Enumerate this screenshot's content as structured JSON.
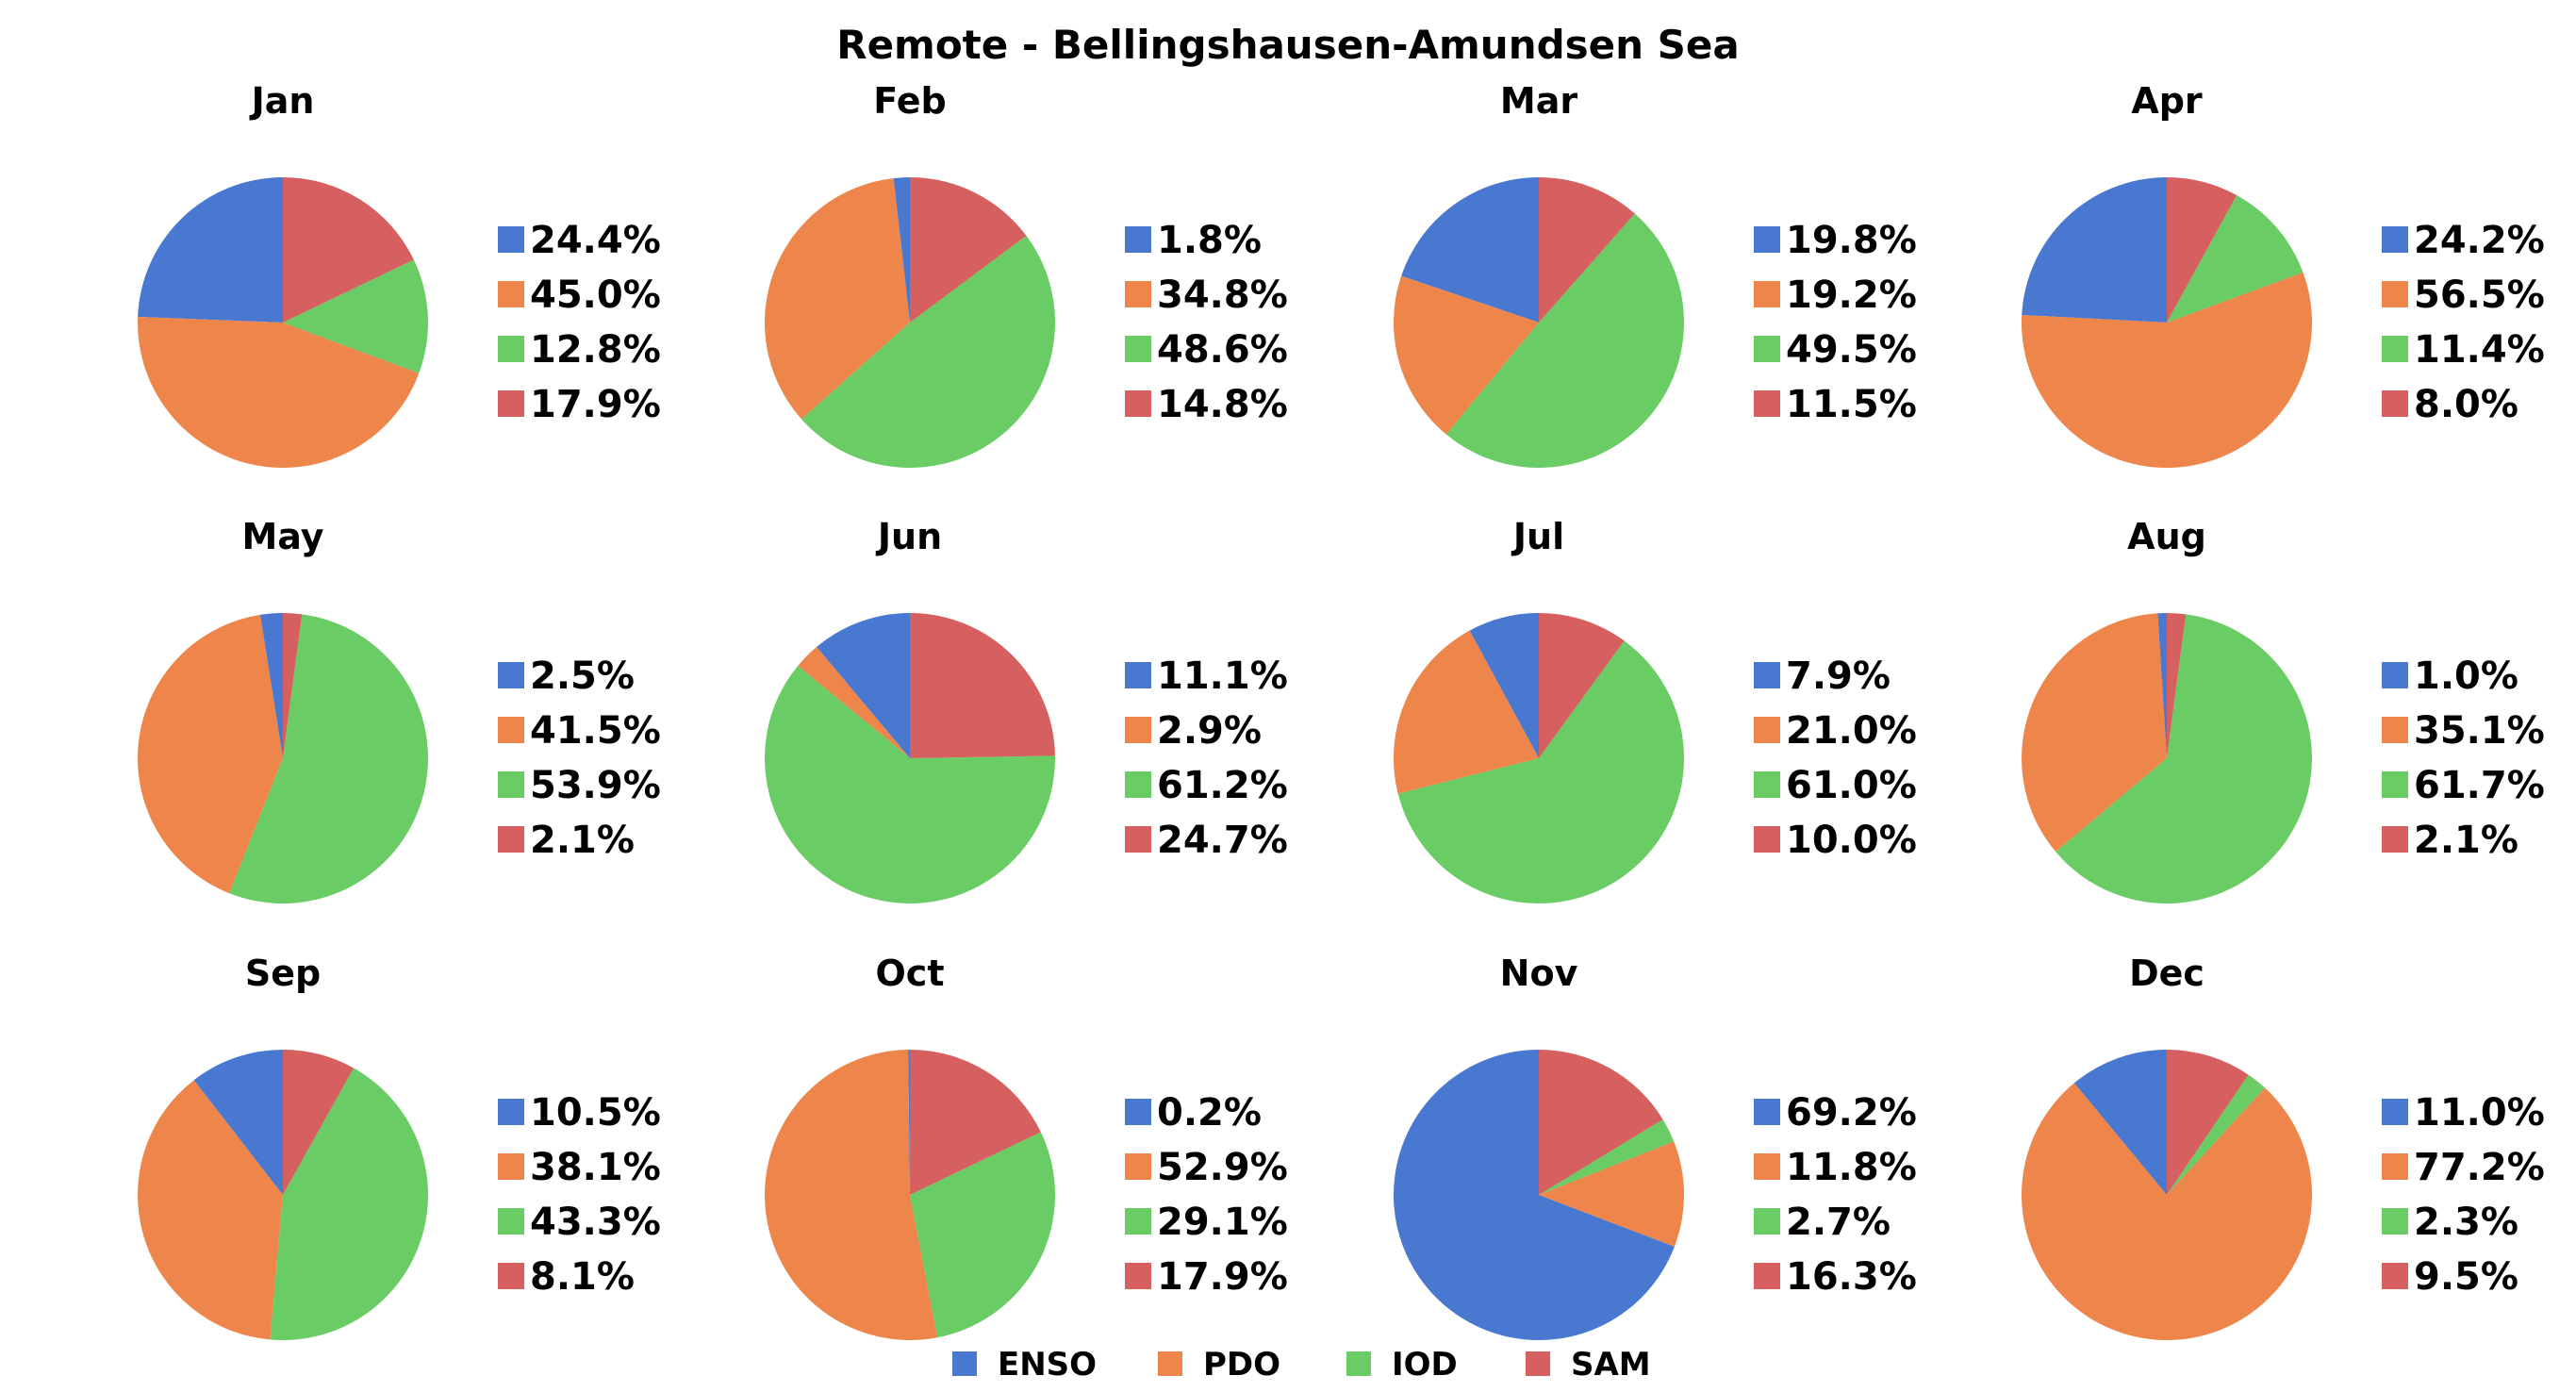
{
  "chart_data": {
    "type": "pie",
    "title": "Remote - Bellingshausen-Amundsen Sea",
    "categories": [
      "ENSO",
      "PDO",
      "IOD",
      "SAM"
    ],
    "colors": [
      "#4878d0",
      "#ee854a",
      "#6acc64",
      "#d65f5f"
    ],
    "legend": {
      "placement": "bottom-center",
      "entries": [
        "ENSO",
        "PDO",
        "IOD",
        "SAM"
      ]
    },
    "months": [
      {
        "name": "Jan",
        "values": [
          24.4,
          45.0,
          12.8,
          17.9
        ],
        "labels": [
          "24.4%",
          "45.0%",
          "12.8%",
          "17.9%"
        ]
      },
      {
        "name": "Feb",
        "values": [
          1.8,
          34.8,
          48.6,
          14.8
        ],
        "labels": [
          "1.8%",
          "34.8%",
          "48.6%",
          "14.8%"
        ]
      },
      {
        "name": "Mar",
        "values": [
          19.8,
          19.2,
          49.5,
          11.5
        ],
        "labels": [
          "19.8%",
          "19.2%",
          "49.5%",
          "11.5%"
        ]
      },
      {
        "name": "Apr",
        "values": [
          24.2,
          56.5,
          11.4,
          8.0
        ],
        "labels": [
          "24.2%",
          "56.5%",
          "11.4%",
          "8.0%"
        ]
      },
      {
        "name": "May",
        "values": [
          2.5,
          41.5,
          53.9,
          2.1
        ],
        "labels": [
          "2.5%",
          "41.5%",
          "53.9%",
          "2.1%"
        ]
      },
      {
        "name": "Jun",
        "values": [
          11.1,
          2.9,
          61.2,
          24.7
        ],
        "labels": [
          "11.1%",
          "2.9%",
          "61.2%",
          "24.7%"
        ]
      },
      {
        "name": "Jul",
        "values": [
          7.9,
          21.0,
          61.0,
          10.0
        ],
        "labels": [
          "7.9%",
          "21.0%",
          "61.0%",
          "10.0%"
        ]
      },
      {
        "name": "Aug",
        "values": [
          1.0,
          35.1,
          61.7,
          2.1
        ],
        "labels": [
          "1.0%",
          "35.1%",
          "61.7%",
          "2.1%"
        ]
      },
      {
        "name": "Sep",
        "values": [
          10.5,
          38.1,
          43.3,
          8.1
        ],
        "labels": [
          "10.5%",
          "38.1%",
          "43.3%",
          "8.1%"
        ]
      },
      {
        "name": "Oct",
        "values": [
          0.2,
          52.9,
          29.1,
          17.9
        ],
        "labels": [
          "0.2%",
          "52.9%",
          "29.1%",
          "17.9%"
        ]
      },
      {
        "name": "Nov",
        "values": [
          69.2,
          11.8,
          2.7,
          16.3
        ],
        "labels": [
          "69.2%",
          "11.8%",
          "2.7%",
          "16.3%"
        ]
      },
      {
        "name": "Dec",
        "values": [
          11.0,
          77.2,
          2.3,
          9.5
        ],
        "labels": [
          "11.0%",
          "77.2%",
          "2.3%",
          "9.5%"
        ]
      }
    ]
  }
}
